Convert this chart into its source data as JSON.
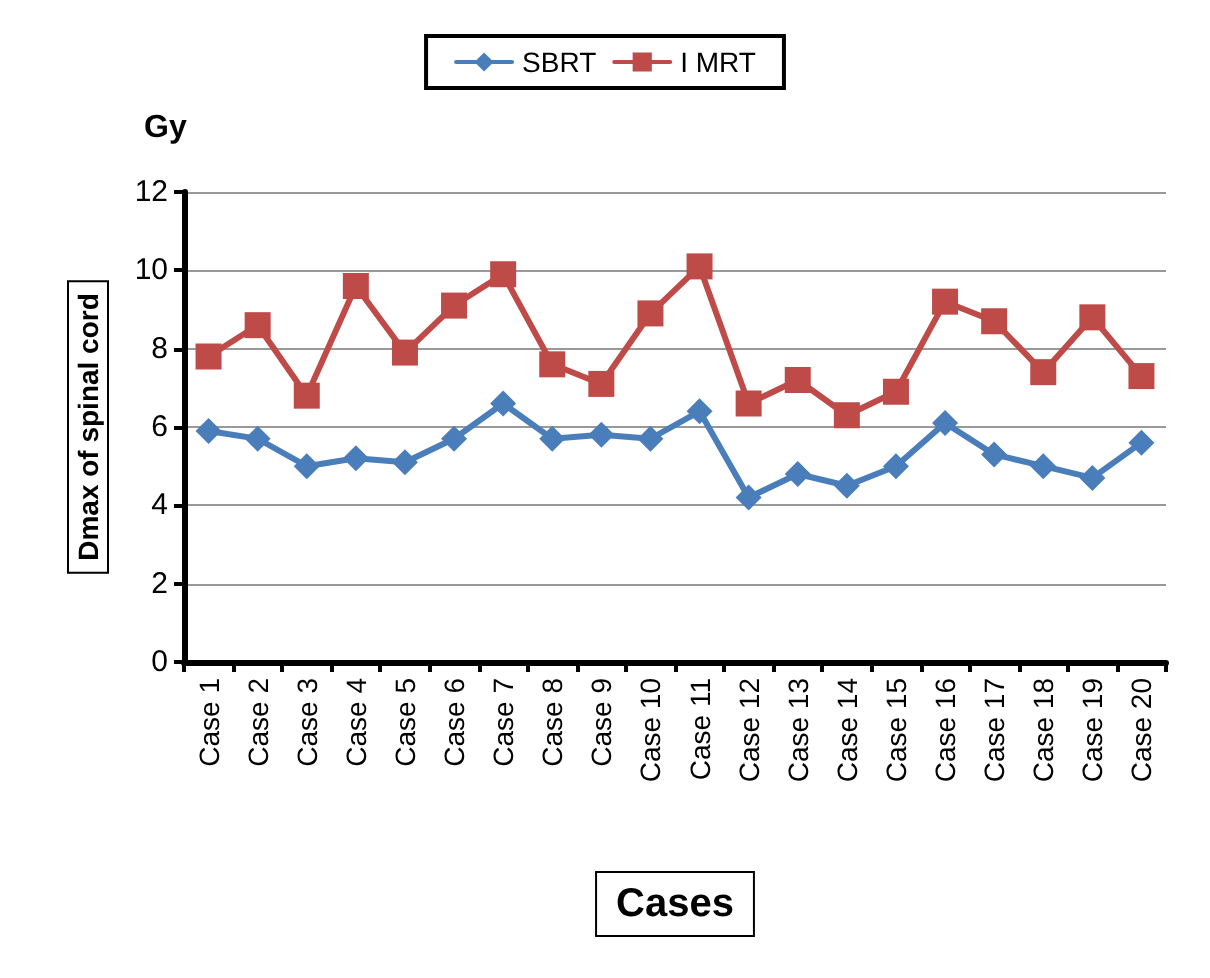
{
  "chart_data": {
    "type": "line",
    "xlabel": "Cases",
    "ylabel": "Dmax of spinal cord",
    "annotations": [
      "Gy"
    ],
    "categories": [
      "Case 1",
      "Case 2",
      "Case 3",
      "Case 4",
      "Case 5",
      "Case 6",
      "Case 7",
      "Case 8",
      "Case 9",
      "Case 10",
      "Case 11",
      "Case 12",
      "Case 13",
      "Case 14",
      "Case 15",
      "Case 16",
      "Case 17",
      "Case 18",
      "Case 19",
      "Case 20"
    ],
    "series": [
      {
        "name": "SBRT",
        "color": "#4a7ebb",
        "marker": "diamond",
        "values": [
          5.9,
          5.7,
          5.0,
          5.2,
          5.1,
          5.7,
          6.6,
          5.7,
          5.8,
          5.7,
          6.4,
          4.2,
          4.8,
          4.5,
          5.0,
          6.1,
          5.3,
          5.0,
          4.7,
          5.6
        ]
      },
      {
        "name": "I MRT",
        "color": "#be4b48",
        "marker": "square",
        "values": [
          7.8,
          8.6,
          6.8,
          9.6,
          7.9,
          9.1,
          9.9,
          7.6,
          7.1,
          8.9,
          10.1,
          6.6,
          7.2,
          6.3,
          6.9,
          9.2,
          8.7,
          7.4,
          8.8,
          7.3
        ]
      }
    ],
    "ylim": [
      0,
      12
    ],
    "yticks": [
      0,
      2,
      4,
      6,
      8,
      10,
      12
    ],
    "grid": "y",
    "legend": "top",
    "line_style": "solid"
  }
}
